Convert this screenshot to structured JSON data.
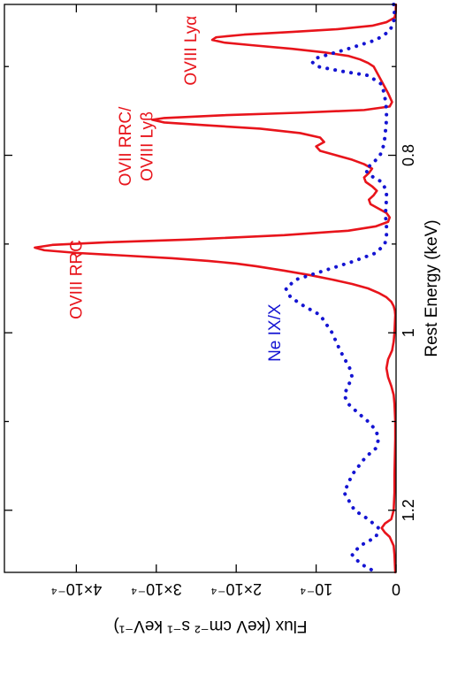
{
  "chart_data": {
    "type": "line",
    "title": "",
    "xlabel": "Rest Energy (keV)",
    "ylabel": "Flux (keV cm⁻² s⁻¹ keV⁻¹)",
    "xlim": [
      0.63,
      1.27
    ],
    "ylim": [
      0,
      0.00049
    ],
    "x_ticks": [
      {
        "value": 0.8,
        "label": "0.8"
      },
      {
        "value": 1.0,
        "label": "1"
      },
      {
        "value": 1.2,
        "label": "1.2"
      }
    ],
    "x_minor_ticks": [
      0.7,
      0.9,
      1.1
    ],
    "y_ticks": [
      {
        "value": 0,
        "label": "0"
      },
      {
        "value": 0.0001,
        "label": "10⁻⁴"
      },
      {
        "value": 0.0002,
        "label": "2×10⁻⁴"
      },
      {
        "value": 0.0003,
        "label": "3×10⁻⁴"
      },
      {
        "value": 0.0004,
        "label": "4×10⁻⁴"
      }
    ],
    "grid": false,
    "legend": "none",
    "rotated": "90° clockwise (energy axis along the right side, flux axis along the bottom)",
    "series": [
      {
        "color": "#e8141b",
        "style": "solid",
        "x": [
          0.63,
          0.64,
          0.645,
          0.65,
          0.654,
          0.658,
          0.661,
          0.664,
          0.667,
          0.67,
          0.673,
          0.676,
          0.68,
          0.684,
          0.688,
          0.692,
          0.696,
          0.7,
          0.71,
          0.72,
          0.73,
          0.74,
          0.745,
          0.749,
          0.752,
          0.755,
          0.758,
          0.76,
          0.763,
          0.766,
          0.77,
          0.775,
          0.78,
          0.785,
          0.79,
          0.795,
          0.8,
          0.805,
          0.81,
          0.815,
          0.82,
          0.825,
          0.83,
          0.835,
          0.84,
          0.845,
          0.85,
          0.855,
          0.86,
          0.865,
          0.87,
          0.875,
          0.88,
          0.885,
          0.89,
          0.895,
          0.898,
          0.901,
          0.904,
          0.907,
          0.91,
          0.913,
          0.916,
          0.919,
          0.922,
          0.925,
          0.93,
          0.935,
          0.94,
          0.945,
          0.95,
          0.955,
          0.96,
          0.965,
          0.97,
          0.975,
          0.98,
          0.99,
          1.0,
          1.01,
          1.02,
          1.03,
          1.04,
          1.05,
          1.06,
          1.07,
          1.08,
          1.1,
          1.12,
          1.14,
          1.16,
          1.18,
          1.2,
          1.21,
          1.215,
          1.22,
          1.225,
          1.23,
          1.24,
          1.25,
          1.27
        ],
        "y": [
          2e-07,
          5e-07,
          2e-06,
          1.2e-05,
          3e-05,
          7.5e-05,
          0.00013,
          0.00019,
          0.000225,
          0.00023,
          0.000215,
          0.00018,
          0.00013,
          9e-05,
          6e-05,
          4.5e-05,
          3.5e-05,
          2.8e-05,
          2.2e-05,
          1.6e-05,
          1e-05,
          5e-06,
          8e-06,
          4e-05,
          0.00012,
          0.00022,
          0.00029,
          0.000305,
          0.00029,
          0.00024,
          0.00017,
          0.00012,
          9.5e-05,
          9e-05,
          0.0001,
          9.5e-05,
          7.5e-05,
          5.5e-05,
          4e-05,
          3e-05,
          3.4e-05,
          4e-05,
          3.8e-05,
          3e-05,
          2.4e-05,
          2.8e-05,
          3.4e-05,
          3.2e-05,
          2.2e-05,
          1.2e-05,
          8e-06,
          1e-05,
          2.5e-05,
          6e-05,
          0.00014,
          0.00026,
          0.00036,
          0.00043,
          0.000452,
          0.00044,
          0.0004,
          0.00034,
          0.00028,
          0.000235,
          0.0002,
          0.000175,
          0.00014,
          0.000108,
          8e-05,
          5.5e-05,
          3.5e-05,
          2.2e-05,
          1.2e-05,
          6e-06,
          3e-06,
          1.5e-06,
          1e-06,
          1.5e-06,
          2e-06,
          3e-06,
          5e-06,
          1e-05,
          1.2e-05,
          1e-05,
          6e-06,
          3e-06,
          2e-06,
          1e-06,
          1e-06,
          1.5e-06,
          2e-06,
          2e-06,
          3e-06,
          6e-06,
          1.4e-05,
          1.8e-05,
          1.4e-05,
          8e-06,
          3e-06,
          2e-06,
          1e-06
        ]
      },
      {
        "name": "Ne IX/X",
        "color": "#1414d2",
        "style": "dotted",
        "x": [
          0.63,
          0.64,
          0.65,
          0.66,
          0.67,
          0.68,
          0.69,
          0.695,
          0.7,
          0.705,
          0.71,
          0.72,
          0.73,
          0.74,
          0.75,
          0.76,
          0.77,
          0.78,
          0.79,
          0.8,
          0.81,
          0.815,
          0.82,
          0.825,
          0.83,
          0.84,
          0.85,
          0.86,
          0.87,
          0.88,
          0.89,
          0.9,
          0.91,
          0.92,
          0.93,
          0.94,
          0.95,
          0.96,
          0.97,
          0.98,
          1.0,
          1.02,
          1.04,
          1.05,
          1.06,
          1.07,
          1.08,
          1.09,
          1.1,
          1.11,
          1.12,
          1.13,
          1.14,
          1.16,
          1.18,
          1.2,
          1.21,
          1.22,
          1.23,
          1.24,
          1.25,
          1.26,
          1.27
        ],
        "y": [
          3e-06,
          2e-06,
          3e-06,
          8e-06,
          2.5e-05,
          6e-05,
          9.8e-05,
          0.000105,
          9.8e-05,
          7e-05,
          3.5e-05,
          1.8e-05,
          1.5e-05,
          1.3e-05,
          1.2e-05,
          1.2e-05,
          1.3e-05,
          1.4e-05,
          1.6e-05,
          2e-05,
          3e-05,
          3.8e-05,
          3.6e-05,
          2.8e-05,
          1.8e-05,
          1.2e-05,
          1.2e-05,
          1.3e-05,
          1.3e-05,
          1.2e-05,
          1.2e-05,
          1.4e-05,
          2.5e-05,
          5.5e-05,
          9e-05,
          0.000125,
          0.000138,
          0.000132,
          0.000115,
          9.5e-05,
          8e-05,
          7e-05,
          5.8e-05,
          5.5e-05,
          6e-05,
          6.5e-05,
          6e-05,
          4.8e-05,
          3.5e-05,
          2.5e-05,
          2.2e-05,
          2.5e-05,
          3.8e-05,
          5.5e-05,
          6.5e-05,
          5.2e-05,
          3.5e-05,
          2.2e-05,
          2.5e-05,
          4.5e-05,
          5.5e-05,
          4.5e-05,
          2.5e-05
        ]
      }
    ],
    "annotations": [
      {
        "text": "OVIII Lyα",
        "color": "#e8141b",
        "x": 0.682,
        "y": 0.00025
      },
      {
        "text": "OVII RRC/",
        "color": "#e8141b",
        "x": 0.79,
        "y": 0.000332
      },
      {
        "text": "OVIII Lyβ",
        "color": "#e8141b",
        "x": 0.79,
        "y": 0.000305
      },
      {
        "text": "OVIII RRC",
        "color": "#e8141b",
        "x": 0.94,
        "y": 0.000393
      },
      {
        "text": "Ne IX/X",
        "color": "#1414d2",
        "x": 1.0,
        "y": 0.000145
      }
    ]
  }
}
